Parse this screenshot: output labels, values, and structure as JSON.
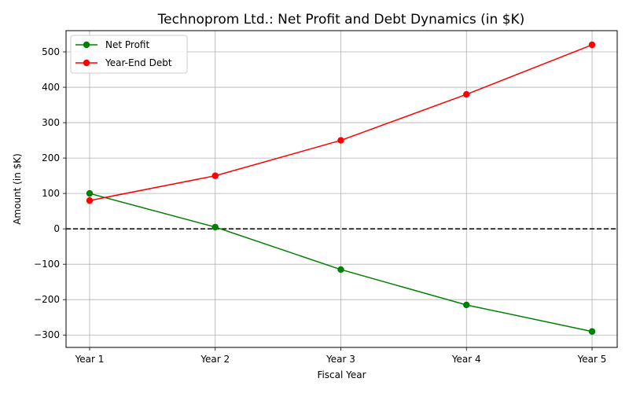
{
  "chart_data": {
    "type": "line",
    "title": "Technoprom Ltd.: Net Profit and Debt Dynamics (in $K)",
    "xlabel": "Fiscal Year",
    "ylabel": "Amount (in $K)",
    "categories": [
      "Year 1",
      "Year 2",
      "Year 3",
      "Year 4",
      "Year 5"
    ],
    "ylim": [
      -335,
      560
    ],
    "yticks": [
      -300,
      -200,
      -100,
      0,
      100,
      200,
      300,
      400,
      500
    ],
    "yticklabels": [
      "−300",
      "−200",
      "−100",
      "0",
      "100",
      "200",
      "300",
      "400",
      "500"
    ],
    "grid": true,
    "legend_position": "top-left",
    "reference_line": {
      "y": 0,
      "style": "dashed",
      "color": "#000000"
    },
    "series": [
      {
        "name": "Net Profit",
        "color": "#008000",
        "marker": "circle",
        "values": [
          100,
          5,
          -115,
          -215,
          -290
        ]
      },
      {
        "name": "Year-End Debt",
        "color": "#ff0000",
        "marker": "circle",
        "values": [
          80,
          150,
          250,
          380,
          520
        ]
      }
    ]
  }
}
